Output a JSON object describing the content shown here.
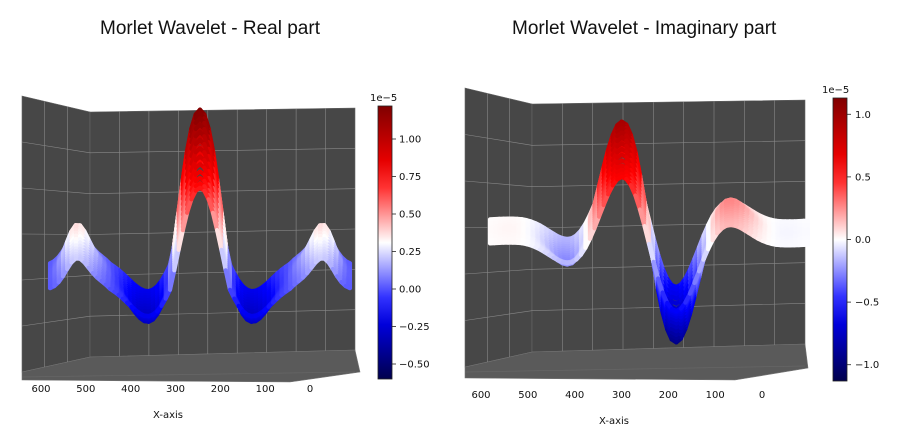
{
  "chart_data": [
    {
      "type": "surface",
      "title": "Morlet Wavelet - Real part",
      "xlabel": "X-axis",
      "x_ticks": [
        "600",
        "500",
        "400",
        "300",
        "200",
        "100",
        "0"
      ],
      "xlim": [
        0,
        650
      ],
      "x_center": 256,
      "colormap": "seismic",
      "colorbar": {
        "exponent_label": "1e−5",
        "ticks": [
          "1.00",
          "0.75",
          "0.50",
          "0.25",
          "0.00",
          "−0.25",
          "−0.50"
        ],
        "tick_values": [
          1.0,
          0.75,
          0.5,
          0.25,
          0.0,
          -0.25,
          -0.5
        ],
        "range": [
          -0.6,
          1.22
        ]
      },
      "z_range": [
        -0.6,
        1.22
      ],
      "peak_value": 1.22,
      "trough_value": -0.6,
      "side_peak_value": 0.32
    },
    {
      "type": "surface",
      "title": "Morlet Wavelet - Imaginary part",
      "xlabel": "X-axis",
      "x_ticks": [
        "600",
        "500",
        "400",
        "300",
        "200",
        "100",
        "0"
      ],
      "xlim": [
        0,
        650
      ],
      "x_center": 256,
      "colormap": "seismic",
      "colorbar": {
        "exponent_label": "1e−5",
        "ticks": [
          "1.0",
          "0.5",
          "0.0",
          "−0.5",
          "−1.0"
        ],
        "tick_values": [
          1.0,
          0.5,
          0.0,
          -0.5,
          -1.0
        ],
        "range": [
          -1.13,
          1.13
        ]
      },
      "z_range": [
        -1.13,
        1.13
      ],
      "peak_value": 1.13,
      "trough_value": -1.13,
      "side_peak_value": 0.3
    }
  ]
}
